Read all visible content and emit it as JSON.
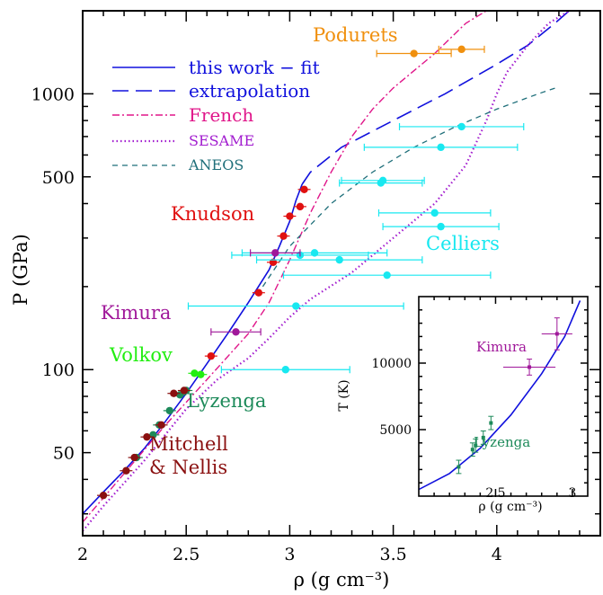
{
  "colors": {
    "fit": "#1010dd",
    "french": "#e0168a",
    "sesame": "#a21ccf",
    "aneos": "#1f6f7a",
    "podurets": "#f0900e",
    "knudson": "#e01010",
    "celliers": "#18e8f0",
    "kimura": "#a0189a",
    "volkov": "#22ee11",
    "lyzenga": "#1d8a5a",
    "mitchell": "#8a1010"
  },
  "chart_data": [
    {
      "type": "scatter",
      "x_scale": "linear",
      "y_scale": "log",
      "xlim": [
        2.0,
        4.5
      ],
      "ylim": [
        25,
        2000
      ],
      "xlabel": "ρ (g cm⁻³)",
      "ylabel": "P (GPa)",
      "x_ticks": [
        2,
        2.5,
        3,
        3.5,
        4
      ],
      "x_tick_labels": [
        "2",
        "2.5",
        "3",
        "3.5",
        "4"
      ],
      "y_ticks": [
        50,
        100,
        500,
        1000
      ],
      "y_tick_labels": [
        "50",
        "100",
        "500",
        "1000"
      ],
      "legend_position": "top-left",
      "lines": [
        {
          "name": "this work − fit",
          "style": "solid",
          "color": "#1010dd",
          "points": [
            [
              2.0,
              30
            ],
            [
              2.1,
              36
            ],
            [
              2.2,
              43
            ],
            [
              2.3,
              52
            ],
            [
              2.4,
              65
            ],
            [
              2.5,
              82
            ],
            [
              2.6,
              105
            ],
            [
              2.7,
              135
            ],
            [
              2.8,
              175
            ],
            [
              2.9,
              230
            ],
            [
              2.95,
              280
            ],
            [
              3.0,
              345
            ],
            [
              3.03,
              410
            ],
            [
              3.06,
              470
            ]
          ]
        },
        {
          "name": "extrapolation",
          "style": "dashed",
          "color": "#1010dd",
          "points": [
            [
              3.06,
              470
            ],
            [
              3.1,
              520
            ],
            [
              3.25,
              640
            ],
            [
              3.5,
              800
            ],
            [
              3.75,
              1000
            ],
            [
              4.0,
              1280
            ],
            [
              4.15,
              1500
            ],
            [
              4.28,
              1800
            ],
            [
              4.35,
              2000
            ]
          ]
        },
        {
          "name": "French",
          "style": "dash-dot",
          "color": "#e0168a",
          "points": [
            [
              2.0,
              28
            ],
            [
              2.2,
              42
            ],
            [
              2.4,
              63
            ],
            [
              2.6,
              92
            ],
            [
              2.8,
              135
            ],
            [
              2.9,
              175
            ],
            [
              3.0,
              250
            ],
            [
              3.1,
              370
            ],
            [
              3.2,
              520
            ],
            [
              3.3,
              700
            ],
            [
              3.4,
              880
            ],
            [
              3.5,
              1050
            ],
            [
              3.7,
              1400
            ],
            [
              3.85,
              1800
            ],
            [
              3.95,
              2000
            ]
          ]
        },
        {
          "name": "SESAME",
          "style": "dotted",
          "color": "#a21ccf",
          "points": [
            [
              2.0,
              26
            ],
            [
              2.1,
              32
            ],
            [
              2.3,
              47
            ],
            [
              2.5,
              72
            ],
            [
              2.65,
              92
            ],
            [
              2.8,
              110
            ],
            [
              2.9,
              130
            ],
            [
              3.0,
              155
            ],
            [
              3.1,
              180
            ],
            [
              3.3,
              225
            ],
            [
              3.5,
              300
            ],
            [
              3.7,
              400
            ],
            [
              3.85,
              550
            ],
            [
              3.95,
              800
            ],
            [
              4.0,
              1000
            ],
            [
              4.05,
              1200
            ],
            [
              4.15,
              1500
            ],
            [
              4.25,
              1800
            ],
            [
              4.35,
              2000
            ]
          ]
        },
        {
          "name": "ANEOS",
          "style": "dashed-short",
          "color": "#1f6f7a",
          "points": [
            [
              2.87,
              200
            ],
            [
              3.0,
              280
            ],
            [
              3.2,
              400
            ],
            [
              3.4,
              520
            ],
            [
              3.6,
              640
            ],
            [
              3.8,
              760
            ],
            [
              4.0,
              880
            ],
            [
              4.2,
              1000
            ],
            [
              4.3,
              1060
            ]
          ]
        }
      ],
      "groups": [
        {
          "name": "Podurets",
          "color": "#f0900e",
          "points": [
            {
              "x": 3.6,
              "y": 1400,
              "xerr": 0.18
            },
            {
              "x": 3.83,
              "y": 1450,
              "xerr": 0.11
            }
          ]
        },
        {
          "name": "Knudson",
          "color": "#e01010",
          "points": [
            {
              "x": 2.62,
              "y": 112
            },
            {
              "x": 2.85,
              "y": 190
            },
            {
              "x": 2.92,
              "y": 245
            },
            {
              "x": 2.97,
              "y": 305
            },
            {
              "x": 3.0,
              "y": 360
            },
            {
              "x": 3.05,
              "y": 390
            },
            {
              "x": 3.07,
              "y": 450
            }
          ]
        },
        {
          "name": "Celliers",
          "color": "#18e8f0",
          "points": [
            {
              "x": 3.83,
              "y": 760,
              "xerr": 0.3
            },
            {
              "x": 3.73,
              "y": 640,
              "xerr": 0.37
            },
            {
              "x": 3.45,
              "y": 485,
              "xerr": 0.2
            },
            {
              "x": 3.44,
              "y": 475,
              "xerr": 0.2
            },
            {
              "x": 3.7,
              "y": 370,
              "xerr": 0.27
            },
            {
              "x": 3.73,
              "y": 330,
              "xerr": 0.28
            },
            {
              "x": 3.05,
              "y": 260,
              "xerr": 0.33
            },
            {
              "x": 3.12,
              "y": 265,
              "xerr": 0.35
            },
            {
              "x": 3.24,
              "y": 250,
              "xerr": 0.4
            },
            {
              "x": 3.47,
              "y": 220,
              "xerr": 0.5
            },
            {
              "x": 3.03,
              "y": 170,
              "xerr": 0.52
            },
            {
              "x": 2.98,
              "y": 100,
              "xerr": 0.31
            }
          ]
        },
        {
          "name": "Kimura",
          "color": "#a0189a",
          "points": [
            {
              "x": 2.74,
              "y": 137,
              "xerr": 0.12
            },
            {
              "x": 2.93,
              "y": 265,
              "xerr": 0.12
            }
          ]
        },
        {
          "name": "Volkov",
          "color": "#22ee11",
          "points": [
            {
              "x": 2.54,
              "y": 97
            },
            {
              "x": 2.57,
              "y": 96
            }
          ]
        },
        {
          "name": "Lyzenga",
          "color": "#1d8a5a",
          "points": [
            {
              "x": 2.26,
              "y": 48
            },
            {
              "x": 2.34,
              "y": 58
            },
            {
              "x": 2.37,
              "y": 63
            },
            {
              "x": 2.42,
              "y": 71
            },
            {
              "x": 2.47,
              "y": 81
            },
            {
              "x": 2.5,
              "y": 84
            }
          ]
        },
        {
          "name": "Mitchell & Nellis",
          "color": "#8a1010",
          "points": [
            {
              "x": 2.1,
              "y": 35
            },
            {
              "x": 2.21,
              "y": 43
            },
            {
              "x": 2.25,
              "y": 48
            },
            {
              "x": 2.31,
              "y": 57
            },
            {
              "x": 2.38,
              "y": 63
            },
            {
              "x": 2.44,
              "y": 82
            },
            {
              "x": 2.49,
              "y": 84
            }
          ]
        }
      ]
    },
    {
      "type": "scatter",
      "xlim": [
        2.0,
        3.1
      ],
      "ylim": [
        0,
        15000
      ],
      "xlabel": "ρ (g cm⁻³)",
      "ylabel": "T (K)",
      "x_ticks": [
        2.5,
        3
      ],
      "x_tick_labels": [
        "2.5",
        "3"
      ],
      "y_ticks": [
        5000,
        10000
      ],
      "y_tick_labels": [
        "5000",
        "10000"
      ],
      "lines": [
        {
          "name": "fit",
          "style": "solid",
          "color": "#1010dd",
          "points": [
            [
              2.0,
              500
            ],
            [
              2.2,
              1700
            ],
            [
              2.4,
              3600
            ],
            [
              2.6,
              6100
            ],
            [
              2.8,
              9200
            ],
            [
              2.95,
              12000
            ],
            [
              3.05,
              14700
            ]
          ]
        }
      ],
      "groups": [
        {
          "name": "Kimura",
          "color": "#a0189a",
          "points": [
            {
              "x": 2.72,
              "y": 9700,
              "xerr": 0.17,
              "yerr": 600
            },
            {
              "x": 2.9,
              "y": 12200,
              "xerr": 0.1,
              "yerr": 1200
            }
          ]
        },
        {
          "name": "Lyzenga",
          "color": "#1d8a5a",
          "points": [
            {
              "x": 2.26,
              "y": 2200,
              "yerr": 500
            },
            {
              "x": 2.35,
              "y": 3500,
              "yerr": 500
            },
            {
              "x": 2.37,
              "y": 3800,
              "yerr": 500
            },
            {
              "x": 2.42,
              "y": 4400,
              "yerr": 500
            },
            {
              "x": 2.47,
              "y": 5500,
              "yerr": 500
            }
          ]
        }
      ]
    }
  ],
  "legend": {
    "entries": [
      {
        "label": "this work − fit",
        "color": "#1010dd",
        "style": "solid"
      },
      {
        "label": "extrapolation",
        "color": "#1010dd",
        "style": "dashed"
      },
      {
        "label": "French",
        "color": "#e0168a",
        "style": "dash-dot"
      },
      {
        "label": "SESAME",
        "color": "#a21ccf",
        "style": "dotted"
      },
      {
        "label": "ANEOS",
        "color": "#1f6f7a",
        "style": "dashed-short"
      }
    ]
  },
  "labels": {
    "podurets": "Podurets",
    "knudson": "Knudson",
    "celliers": "Celliers",
    "kimura": "Kimura",
    "volkov": "Volkov",
    "lyzenga": "Lyzenga",
    "mitchell_1": "Mitchell",
    "mitchell_2": "& Nellis",
    "inset_kimura": "Kimura",
    "inset_lyzenga": "Lyzenga"
  },
  "axes": {
    "main_xlabel": "ρ (g cm⁻³)",
    "main_ylabel": "P (GPa)",
    "inset_xlabel": "ρ (g cm⁻³)",
    "inset_ylabel": "T (K)"
  }
}
